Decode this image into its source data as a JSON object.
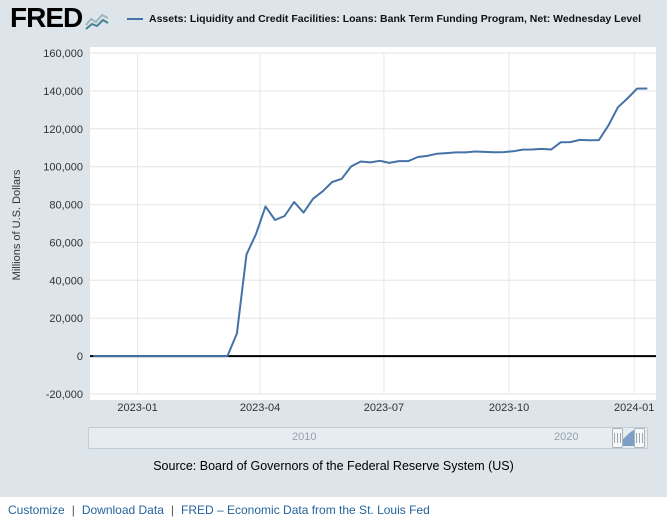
{
  "header": {
    "logo_text": "FRED",
    "legend": {
      "label": "Assets: Liquidity and Credit Facilities: Loans: Bank Term Funding Program, Net: Wednesday Level"
    }
  },
  "chart_data": {
    "type": "line",
    "title": "",
    "xlabel": "",
    "ylabel": "Millions of U.S. Dollars",
    "ylim": [
      -20000,
      160000
    ],
    "y_tick_step": 20000,
    "grid": true,
    "x_domain": [
      "2022-11-27",
      "2024-01-17"
    ],
    "x_ticks": [
      {
        "date": "2023-01-01",
        "label": "2023-01"
      },
      {
        "date": "2023-04-01",
        "label": "2023-04"
      },
      {
        "date": "2023-07-01",
        "label": "2023-07"
      },
      {
        "date": "2023-10-01",
        "label": "2023-10"
      },
      {
        "date": "2024-01-01",
        "label": "2024-01"
      }
    ],
    "line_color": "#4572a7",
    "grid_color": "#e6e6e6",
    "zero_line_color": "#000000",
    "series": [
      {
        "name": "Assets: Liquidity and Credit Facilities: Loans: Bank Term Funding Program, Net: Wednesday Level",
        "units": "Millions of U.S. Dollars",
        "points": [
          [
            "2022-11-30",
            0
          ],
          [
            "2022-12-07",
            0
          ],
          [
            "2022-12-14",
            0
          ],
          [
            "2022-12-21",
            0
          ],
          [
            "2022-12-28",
            0
          ],
          [
            "2023-01-04",
            0
          ],
          [
            "2023-01-11",
            0
          ],
          [
            "2023-01-18",
            0
          ],
          [
            "2023-01-25",
            0
          ],
          [
            "2023-02-01",
            0
          ],
          [
            "2023-02-08",
            0
          ],
          [
            "2023-02-15",
            0
          ],
          [
            "2023-02-22",
            0
          ],
          [
            "2023-03-01",
            0
          ],
          [
            "2023-03-08",
            0
          ],
          [
            "2023-03-15",
            11943
          ],
          [
            "2023-03-22",
            53669
          ],
          [
            "2023-03-29",
            64403
          ],
          [
            "2023-04-05",
            79021
          ],
          [
            "2023-04-12",
            71837
          ],
          [
            "2023-04-19",
            73982
          ],
          [
            "2023-04-26",
            81327
          ],
          [
            "2023-05-03",
            75778
          ],
          [
            "2023-05-10",
            83101
          ],
          [
            "2023-05-17",
            87006
          ],
          [
            "2023-05-24",
            91907
          ],
          [
            "2023-05-31",
            93615
          ],
          [
            "2023-06-07",
            100161
          ],
          [
            "2023-06-14",
            102735
          ],
          [
            "2023-06-21",
            102260
          ],
          [
            "2023-06-28",
            103083
          ],
          [
            "2023-07-05",
            101969
          ],
          [
            "2023-07-12",
            102928
          ],
          [
            "2023-07-19",
            102929
          ],
          [
            "2023-07-26",
            105078
          ],
          [
            "2023-08-02",
            105684
          ],
          [
            "2023-08-09",
            106867
          ],
          [
            "2023-08-16",
            107166
          ],
          [
            "2023-08-23",
            107528
          ],
          [
            "2023-08-30",
            107530
          ],
          [
            "2023-09-06",
            107993
          ],
          [
            "2023-09-13",
            107776
          ],
          [
            "2023-09-20",
            107662
          ],
          [
            "2023-09-27",
            107706
          ],
          [
            "2023-10-04",
            108116
          ],
          [
            "2023-10-11",
            108999
          ],
          [
            "2023-10-18",
            109050
          ],
          [
            "2023-10-25",
            109373
          ],
          [
            "2023-11-01",
            109065
          ],
          [
            "2023-11-08",
            112896
          ],
          [
            "2023-11-15",
            112971
          ],
          [
            "2023-11-22",
            114137
          ],
          [
            "2023-11-29",
            113963
          ],
          [
            "2023-12-06",
            114012
          ],
          [
            "2023-12-13",
            121709
          ],
          [
            "2023-12-20",
            131326
          ],
          [
            "2023-12-27",
            135969
          ],
          [
            "2024-01-03",
            141197
          ],
          [
            "2024-01-10",
            141240
          ]
        ]
      }
    ]
  },
  "slider": {
    "tick_labels": [
      "2010",
      "2020"
    ],
    "selection_color": "#7e9fc5"
  },
  "source_note": "Source: Board of Governors of the Federal Reserve System (US)",
  "footer": {
    "separator": "|",
    "links": [
      "Customize",
      "Download Data",
      "FRED – Economic Data from the St. Louis Fed"
    ]
  }
}
